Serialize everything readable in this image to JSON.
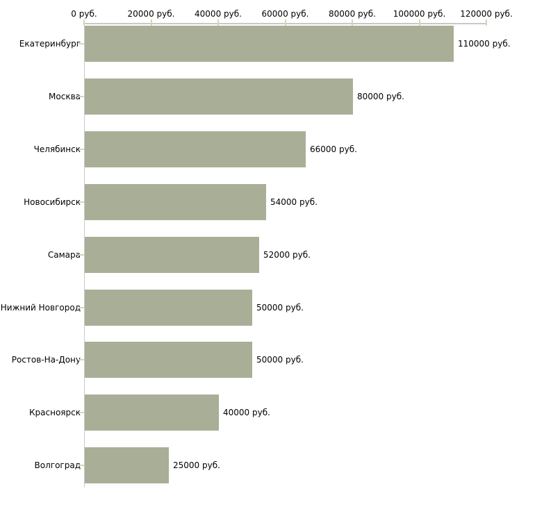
{
  "chart_data": {
    "type": "bar",
    "orientation": "horizontal",
    "title": "",
    "xlabel": "",
    "ylabel": "",
    "xlim": [
      0,
      120000
    ],
    "x_tick_values": [
      0,
      20000,
      40000,
      60000,
      80000,
      100000,
      120000
    ],
    "x_tick_labels": [
      "0 руб.",
      "20000 руб.",
      "40000 руб.",
      "60000 руб.",
      "80000 руб.",
      "100000 руб.",
      "120000 руб."
    ],
    "categories": [
      "Екатеринбург",
      "Москва",
      "Челябинск",
      "Новосибирск",
      "Самара",
      "Нижний Новгород",
      "Ростов-На-Дону",
      "Красноярск",
      "Волгоград"
    ],
    "values": [
      110000,
      80000,
      66000,
      54000,
      52000,
      50000,
      50000,
      40000,
      25000
    ],
    "value_labels": [
      "110000 руб.",
      "80000 руб.",
      "66000 руб.",
      "54000 руб.",
      "52000 руб.",
      "50000 руб.",
      "50000 руб.",
      "40000 руб.",
      "25000 руб."
    ],
    "grid": false,
    "legend": false
  },
  "colors": {
    "bar_fill": "#a9af97",
    "axis_line": "#c8c8c8",
    "tick_mark": "#d4d6b6",
    "text": "#000000",
    "background": "#ffffff"
  }
}
